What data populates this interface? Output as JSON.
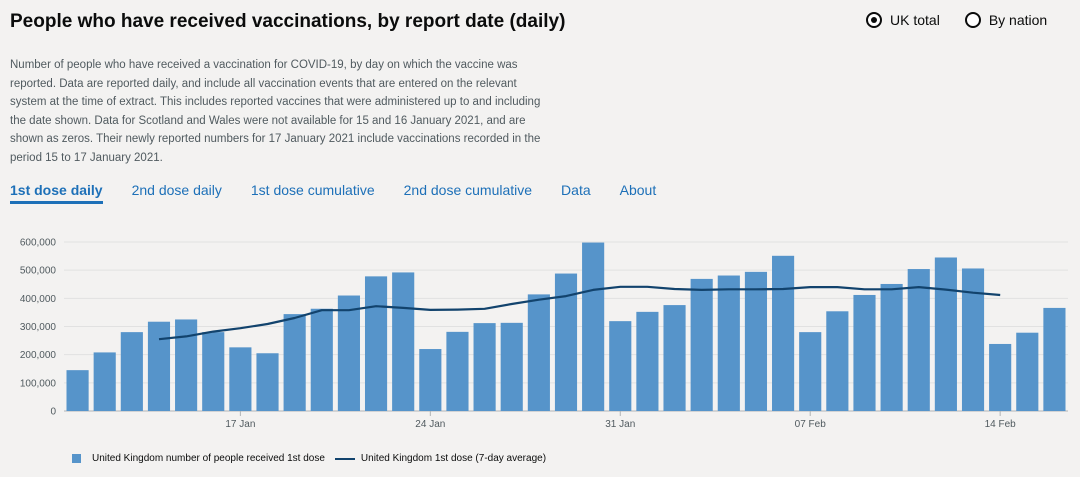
{
  "header": {
    "title": "People who have received vaccinations, by report date (daily)",
    "radios": [
      {
        "label": "UK total",
        "selected": true
      },
      {
        "label": "By nation",
        "selected": false
      }
    ]
  },
  "description": "Number of people who have received a vaccination for COVID-19, by day on which the vaccine was reported. Data are reported daily, and include all vaccination events that are entered on the relevant system at the time of extract. This includes reported vaccines that were administered up to and including the date shown. Data for Scotland and Wales were not available for 15 and 16 January 2021, and are shown as zeros. Their newly reported numbers for 17 January 2021 include vaccinations recorded in the period 15 to 17 January 2021.",
  "tabs": [
    {
      "label": "1st dose daily",
      "active": true
    },
    {
      "label": "2nd dose daily",
      "active": false
    },
    {
      "label": "1st dose cumulative",
      "active": false
    },
    {
      "label": "2nd dose cumulative",
      "active": false
    },
    {
      "label": "Data",
      "active": false
    },
    {
      "label": "About",
      "active": false
    }
  ],
  "legend": {
    "bars": "United Kingdom number of people received 1st dose",
    "line": "United Kingdom 1st dose (7-day average)"
  },
  "chart_data": {
    "type": "bar",
    "x_start": "2021-01-11",
    "x_tick_labels": [
      {
        "date": "2021-01-17",
        "label": "17 Jan"
      },
      {
        "date": "2021-01-24",
        "label": "24 Jan"
      },
      {
        "date": "2021-01-31",
        "label": "31 Jan"
      },
      {
        "date": "2021-02-07",
        "label": "07 Feb"
      },
      {
        "date": "2021-02-14",
        "label": "14 Feb"
      }
    ],
    "y_ticks": [
      0,
      100000,
      200000,
      300000,
      400000,
      500000,
      600000
    ],
    "y_tick_labels": [
      "0",
      "100,000",
      "200,000",
      "300,000",
      "400,000",
      "500,000",
      "600,000"
    ],
    "ylim": [
      0,
      600000
    ],
    "series": [
      {
        "name": "United Kingdom number of people received 1st dose",
        "type": "bar",
        "color": "#5694ca",
        "values": [
          145000,
          208000,
          280000,
          317000,
          325000,
          280000,
          226000,
          205000,
          344000,
          363000,
          410000,
          478000,
          492000,
          220000,
          281000,
          312000,
          313000,
          414000,
          488000,
          598000,
          319000,
          352000,
          376000,
          469000,
          481000,
          494000,
          551000,
          280000,
          354000,
          412000,
          451000,
          504000,
          545000,
          506000,
          238000,
          278000,
          366000
        ]
      },
      {
        "name": "United Kingdom 1st dose (7-day average)",
        "type": "line",
        "color": "#12436d",
        "start_index": 3,
        "values": [
          255000,
          265000,
          282000,
          294000,
          309000,
          330000,
          358000,
          358000,
          372000,
          366000,
          359000,
          360000,
          363000,
          380000,
          395000,
          408000,
          430000,
          441000,
          441000,
          433000,
          430000,
          432000,
          432000,
          433000,
          440000,
          440000,
          432000,
          432000,
          440000,
          431000,
          420000,
          412000
        ]
      }
    ]
  }
}
